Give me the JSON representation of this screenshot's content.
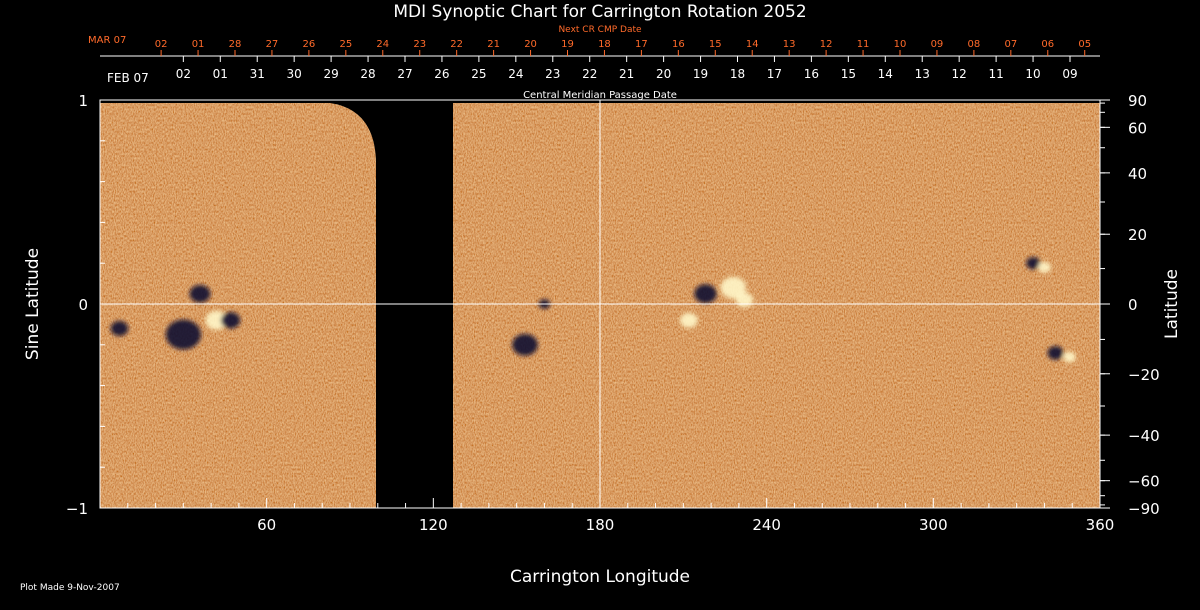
{
  "chart_data": {
    "type": "heatmap",
    "title": "MDI Synoptic Chart for Carrington Rotation 2052",
    "xlabel": "Carrington Longitude",
    "ylabel_left": "Sine Latitude",
    "ylabel_right": "Latitude",
    "xlim": [
      0,
      360
    ],
    "ylim": [
      -1,
      1
    ],
    "x_ticks": [
      60,
      120,
      180,
      240,
      300,
      360
    ],
    "y_left_ticks": [
      {
        "value": 1,
        "label": "1"
      },
      {
        "value": 0,
        "label": "0"
      },
      {
        "value": -1,
        "label": "−1"
      }
    ],
    "y_right_ticks": [
      {
        "lat": 90,
        "label": "90"
      },
      {
        "lat": 60,
        "label": "60"
      },
      {
        "lat": 40,
        "label": "40"
      },
      {
        "lat": 20,
        "label": "20"
      },
      {
        "lat": 0,
        "label": "0"
      },
      {
        "lat": -20,
        "label": "−20"
      },
      {
        "lat": -40,
        "label": "−40"
      },
      {
        "lat": -60,
        "label": "−60"
      },
      {
        "lat": -90,
        "label": "−90"
      }
    ],
    "data_gap_longitude": [
      100,
      127
    ],
    "top_axis_cmp": {
      "label": "Central Meridian Passage Date",
      "month_label": "FEB 07",
      "dates": [
        "02",
        "01",
        "31",
        "30",
        "29",
        "28",
        "27",
        "26",
        "25",
        "24",
        "23",
        "22",
        "21",
        "20",
        "19",
        "18",
        "17",
        "16",
        "15",
        "14",
        "13",
        "12",
        "11",
        "10",
        "09"
      ],
      "longitudes": [
        30,
        43.3,
        56.6,
        69.9,
        83.2,
        96.5,
        109.8,
        123.1,
        136.4,
        149.7,
        163,
        176.3,
        189.6,
        202.9,
        216.2,
        229.5,
        242.8,
        256.1,
        269.4,
        282.7,
        296,
        309.3,
        322.6,
        335.9,
        349.2
      ]
    },
    "top_axis_next_cr": {
      "label": "Next CR CMP Date",
      "month_label": "MAR 07",
      "dates": [
        "02",
        "01",
        "28",
        "27",
        "26",
        "25",
        "24",
        "23",
        "22",
        "21",
        "20",
        "19",
        "18",
        "17",
        "16",
        "15",
        "14",
        "13",
        "12",
        "11",
        "10",
        "09",
        "08",
        "07",
        "06",
        "05"
      ],
      "longitudes": [
        22,
        35.3,
        48.6,
        61.9,
        75.2,
        88.5,
        101.8,
        115.1,
        128.4,
        141.7,
        155,
        168.3,
        181.6,
        194.9,
        208.2,
        221.5,
        234.8,
        248.1,
        261.4,
        274.7,
        288,
        301.3,
        314.6,
        327.9,
        341.2,
        354.5
      ]
    },
    "features": [
      {
        "lon": 7,
        "sinlat": -0.12,
        "polarity": "negative",
        "size": 1.1
      },
      {
        "lon": 42,
        "sinlat": -0.08,
        "polarity": "positive",
        "size": 1.4
      },
      {
        "lon": 47,
        "sinlat": -0.08,
        "polarity": "negative",
        "size": 1.2
      },
      {
        "lon": 30,
        "sinlat": -0.15,
        "polarity": "negative",
        "size": 2.2
      },
      {
        "lon": 36,
        "sinlat": 0.05,
        "polarity": "negative",
        "size": 1.3
      },
      {
        "lon": 153,
        "sinlat": -0.2,
        "polarity": "negative",
        "size": 1.6
      },
      {
        "lon": 160,
        "sinlat": 0.0,
        "polarity": "negative",
        "size": 0.7
      },
      {
        "lon": 212,
        "sinlat": -0.08,
        "polarity": "positive",
        "size": 1.1
      },
      {
        "lon": 218,
        "sinlat": 0.05,
        "polarity": "negative",
        "size": 1.4
      },
      {
        "lon": 228,
        "sinlat": 0.08,
        "polarity": "positive",
        "size": 1.6
      },
      {
        "lon": 232,
        "sinlat": 0.02,
        "polarity": "positive",
        "size": 1.1
      },
      {
        "lon": 336,
        "sinlat": 0.2,
        "polarity": "negative",
        "size": 0.9
      },
      {
        "lon": 340,
        "sinlat": 0.18,
        "polarity": "positive",
        "size": 0.8
      },
      {
        "lon": 344,
        "sinlat": -0.24,
        "polarity": "negative",
        "size": 1.0
      },
      {
        "lon": 349,
        "sinlat": -0.26,
        "polarity": "positive",
        "size": 0.8
      }
    ]
  },
  "footer": {
    "plot_made": "Plot Made  9-Nov-2007"
  },
  "colors": {
    "background": "#000000",
    "axis": "#ffffff",
    "next_cr_text": "#ff6a2a",
    "field_base": "#e85a1e",
    "positive": "#fff6c8",
    "negative": "#0a0830"
  }
}
